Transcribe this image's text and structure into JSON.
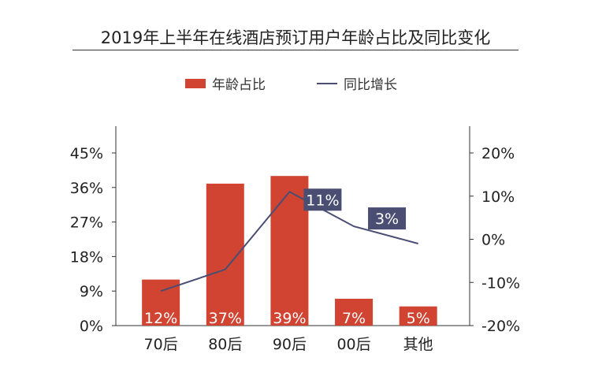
{
  "chart_data": {
    "type": "bar+line",
    "title": "2019年上半年在线酒店预订用户年龄占比及同比变化",
    "categories": [
      "70后",
      "80后",
      "90后",
      "00后",
      "其他"
    ],
    "series": [
      {
        "name": "年龄占比",
        "type": "bar",
        "axis": "left",
        "values": [
          12,
          37,
          39,
          7,
          5
        ],
        "labels": [
          "12%",
          "37%",
          "39%",
          "7%",
          "5%"
        ],
        "color": "#d04431"
      },
      {
        "name": "同比增长",
        "type": "line",
        "axis": "right",
        "values": [
          -12,
          -7,
          11,
          3,
          -1
        ],
        "labels": [
          "",
          "",
          "11%",
          "3%",
          ""
        ],
        "color": "#4a4e72"
      }
    ],
    "left_axis": {
      "ylim": [
        0,
        45
      ],
      "ticks": [
        "0%",
        "9%",
        "18%",
        "27%",
        "36%",
        "45%"
      ]
    },
    "right_axis": {
      "ylim": [
        -20,
        20
      ],
      "ticks": [
        "-20%",
        "-10%",
        "0%",
        "10%",
        "20%"
      ]
    },
    "legend_position": "top",
    "grid": false
  }
}
